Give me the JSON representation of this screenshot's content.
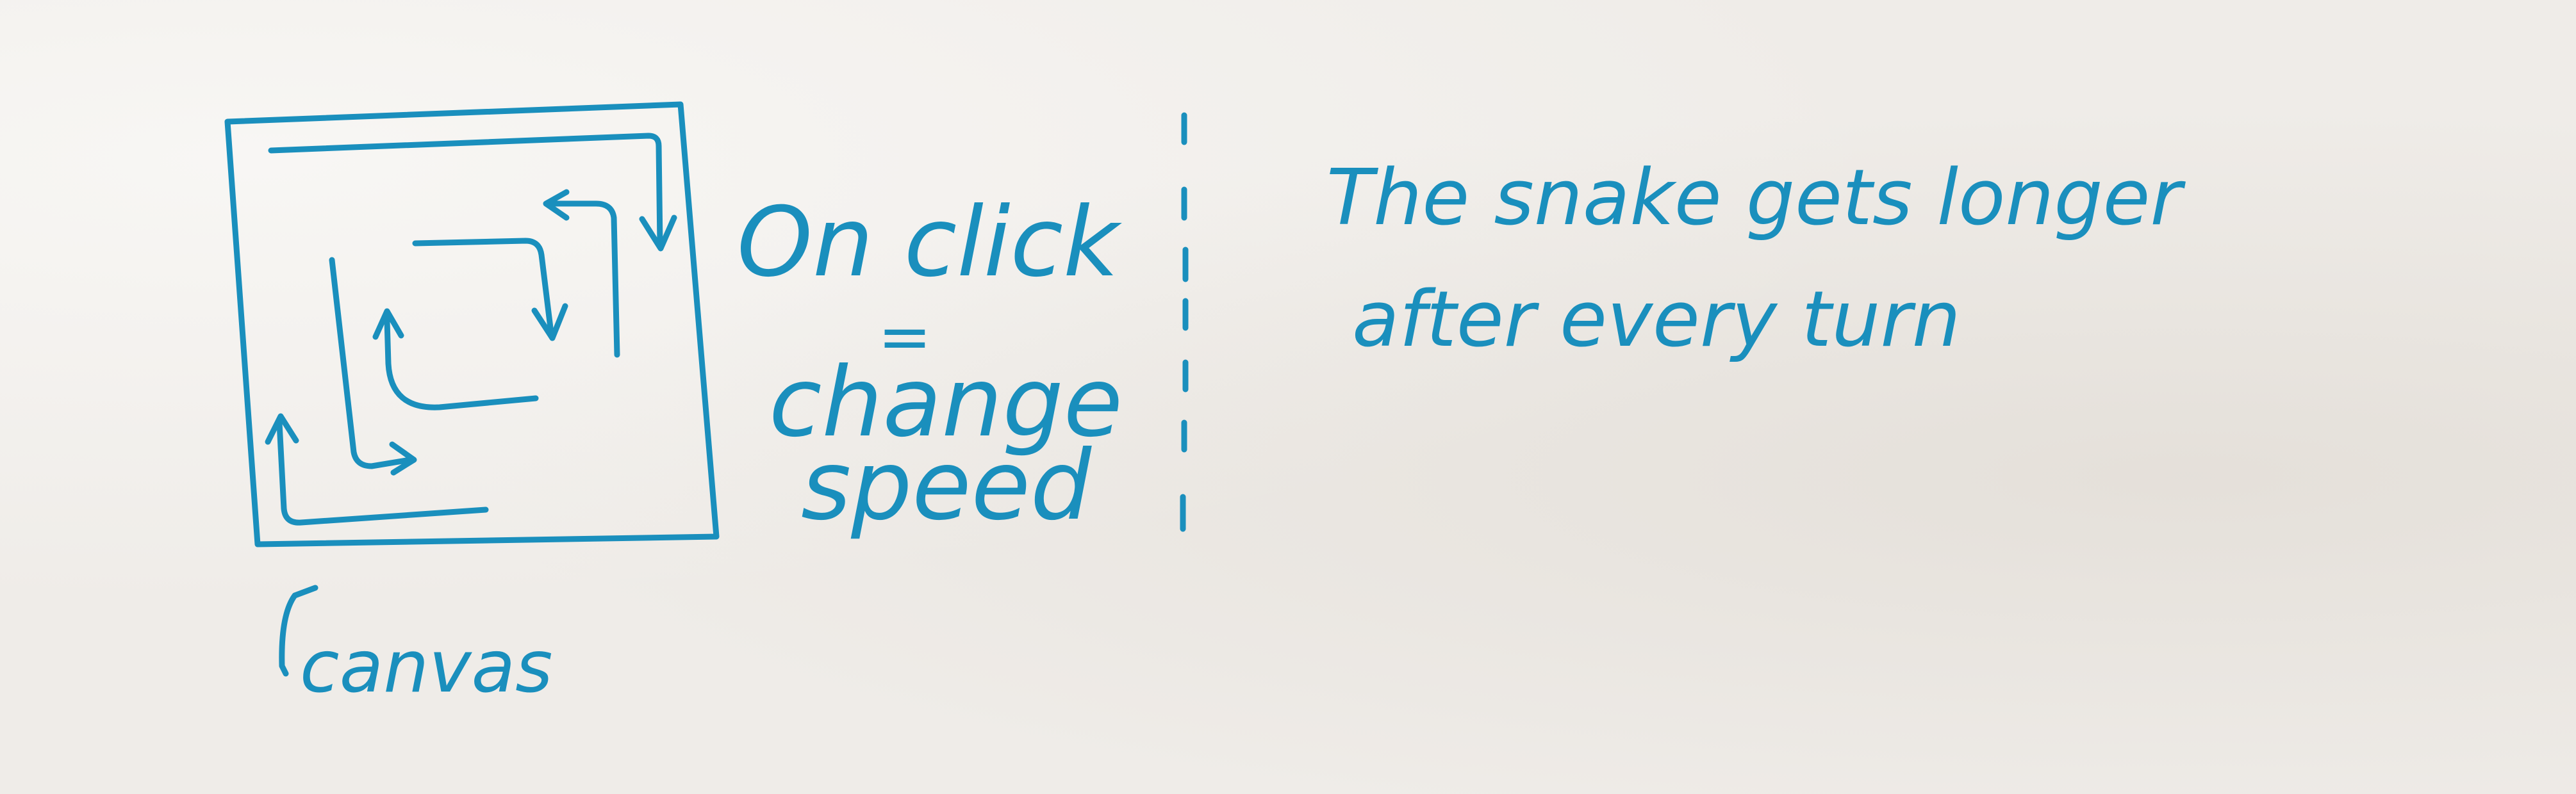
{
  "colors": {
    "ink": "#1a8fbd",
    "paper": "#efece8"
  },
  "canvas_sketch": {
    "label": "canvas"
  },
  "middle_note": {
    "line1": "On click",
    "equals": "=",
    "line2": "change",
    "line3": "speed"
  },
  "right_note": {
    "line1": "The snake gets longer",
    "line2": "after every turn"
  }
}
